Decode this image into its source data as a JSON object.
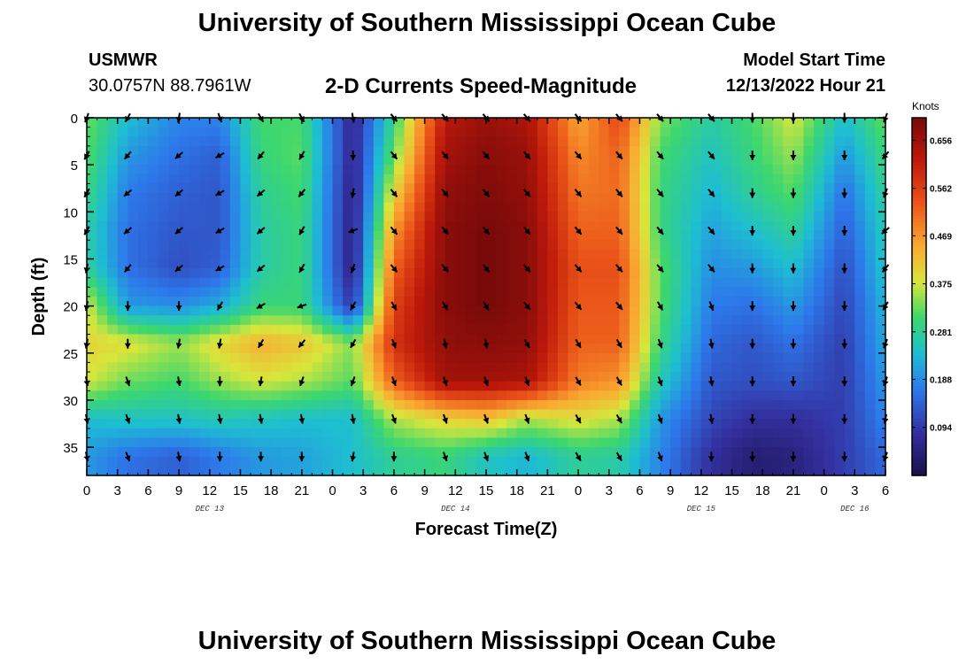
{
  "header": {
    "title": "University of Southern Mississippi Ocean Cube",
    "station_id": "USMWR",
    "coordinates": "30.0757N  88.7961W",
    "chart_title": "2-D Currents Speed-Magnitude",
    "model_start_label": "Model Start Time",
    "model_start_value": "12/13/2022 Hour 21"
  },
  "footer": {
    "title": "University of Southern Mississippi Ocean Cube"
  },
  "chart_data": {
    "type": "heatmap",
    "title": "2-D Currents Speed-Magnitude",
    "xlabel": "Forecast Time(Z)",
    "ylabel": "Depth (ft)",
    "x_range_hours": [
      0,
      78
    ],
    "y_range_ft": [
      0,
      38
    ],
    "x_tick_labels": [
      "0",
      "3",
      "6",
      "9",
      "12",
      "15",
      "18",
      "21",
      "0",
      "3",
      "6",
      "9",
      "12",
      "15",
      "18",
      "21",
      "0",
      "3",
      "6",
      "9",
      "12",
      "15",
      "18",
      "21",
      "0",
      "3",
      "6"
    ],
    "y_ticks": [
      0,
      5,
      10,
      15,
      20,
      25,
      30,
      35
    ],
    "date_labels": [
      {
        "label": "DEC 13",
        "hour": 12
      },
      {
        "label": "DEC 14",
        "hour": 36
      },
      {
        "label": "DEC 15",
        "hour": 60
      },
      {
        "label": "DEC 16",
        "hour": 75
      }
    ],
    "colorbar": {
      "label": "Knots",
      "min": 0.0,
      "max": 0.7,
      "ticks": [
        0.094,
        0.188,
        0.281,
        0.375,
        0.469,
        0.562,
        0.656
      ],
      "tick_labels": [
        "0.094",
        "0.188",
        "0.281",
        "0.375",
        "0.469",
        "0.562",
        "0.656"
      ]
    },
    "time_columns_hours": [
      0,
      4,
      9,
      13,
      17,
      21,
      26,
      30,
      35,
      39,
      43,
      48,
      52,
      56,
      61,
      65,
      69,
      74,
      78
    ],
    "depth_rows_ft": [
      0,
      4,
      8,
      12,
      16,
      20,
      24,
      28,
      32,
      36
    ],
    "speed_grid_knots": [
      [
        0.33,
        0.24,
        0.18,
        0.18,
        0.31,
        0.31,
        0.06,
        0.29,
        0.62,
        0.66,
        0.64,
        0.45,
        0.55,
        0.34,
        0.27,
        0.31,
        0.38,
        0.24,
        0.33
      ],
      [
        0.32,
        0.2,
        0.16,
        0.14,
        0.3,
        0.32,
        0.06,
        0.33,
        0.65,
        0.68,
        0.66,
        0.48,
        0.52,
        0.31,
        0.25,
        0.3,
        0.35,
        0.2,
        0.3
      ],
      [
        0.3,
        0.17,
        0.14,
        0.13,
        0.28,
        0.31,
        0.05,
        0.4,
        0.67,
        0.69,
        0.67,
        0.5,
        0.51,
        0.3,
        0.23,
        0.28,
        0.32,
        0.16,
        0.28
      ],
      [
        0.27,
        0.16,
        0.13,
        0.13,
        0.27,
        0.3,
        0.05,
        0.47,
        0.68,
        0.7,
        0.68,
        0.52,
        0.52,
        0.3,
        0.21,
        0.24,
        0.28,
        0.14,
        0.26
      ],
      [
        0.28,
        0.16,
        0.12,
        0.14,
        0.27,
        0.3,
        0.05,
        0.52,
        0.68,
        0.7,
        0.68,
        0.54,
        0.54,
        0.32,
        0.19,
        0.2,
        0.24,
        0.12,
        0.25
      ],
      [
        0.38,
        0.2,
        0.19,
        0.22,
        0.3,
        0.3,
        0.09,
        0.56,
        0.68,
        0.7,
        0.68,
        0.53,
        0.53,
        0.32,
        0.17,
        0.16,
        0.2,
        0.11,
        0.23
      ],
      [
        0.4,
        0.39,
        0.35,
        0.4,
        0.44,
        0.42,
        0.34,
        0.58,
        0.67,
        0.68,
        0.67,
        0.52,
        0.52,
        0.3,
        0.15,
        0.13,
        0.16,
        0.1,
        0.22
      ],
      [
        0.38,
        0.33,
        0.31,
        0.35,
        0.38,
        0.36,
        0.32,
        0.52,
        0.65,
        0.65,
        0.64,
        0.49,
        0.47,
        0.26,
        0.13,
        0.12,
        0.13,
        0.1,
        0.2
      ],
      [
        0.24,
        0.25,
        0.25,
        0.26,
        0.25,
        0.24,
        0.24,
        0.36,
        0.4,
        0.42,
        0.36,
        0.39,
        0.36,
        0.2,
        0.11,
        0.08,
        0.08,
        0.1,
        0.18
      ],
      [
        0.2,
        0.16,
        0.14,
        0.17,
        0.2,
        0.21,
        0.24,
        0.28,
        0.3,
        0.25,
        0.23,
        0.28,
        0.27,
        0.18,
        0.08,
        0.04,
        0.05,
        0.1,
        0.15
      ]
    ],
    "vector_columns_hours": [
      0,
      4,
      9,
      13,
      17,
      21,
      26,
      30,
      35,
      39,
      43,
      48,
      52,
      56,
      61,
      65,
      69,
      74,
      78
    ],
    "vector_rows_ft": [
      0,
      4,
      8,
      12,
      16,
      20,
      24,
      28,
      32,
      36
    ],
    "vector_direction_deg": [
      [
        200,
        210,
        190,
        160,
        150,
        150,
        170,
        140,
        140,
        140,
        140,
        140,
        140,
        140,
        140,
        180,
        180,
        180,
        200
      ],
      [
        210,
        220,
        230,
        240,
        220,
        210,
        180,
        140,
        140,
        140,
        140,
        140,
        140,
        140,
        140,
        180,
        180,
        180,
        220
      ],
      [
        210,
        230,
        230,
        240,
        230,
        220,
        190,
        140,
        140,
        140,
        140,
        140,
        140,
        140,
        140,
        180,
        180,
        180,
        200
      ],
      [
        210,
        230,
        230,
        240,
        230,
        210,
        250,
        140,
        140,
        140,
        140,
        140,
        140,
        140,
        140,
        180,
        180,
        180,
        230
      ],
      [
        190,
        220,
        230,
        240,
        230,
        210,
        200,
        140,
        140,
        140,
        140,
        140,
        140,
        140,
        140,
        180,
        180,
        180,
        220
      ],
      [
        190,
        180,
        180,
        210,
        240,
        250,
        210,
        150,
        150,
        150,
        140,
        140,
        140,
        150,
        160,
        180,
        180,
        180,
        210
      ],
      [
        190,
        180,
        190,
        190,
        210,
        220,
        210,
        160,
        170,
        170,
        150,
        150,
        150,
        160,
        170,
        180,
        180,
        180,
        200
      ],
      [
        170,
        160,
        170,
        180,
        190,
        200,
        200,
        160,
        160,
        160,
        160,
        150,
        150,
        160,
        170,
        180,
        180,
        180,
        200
      ],
      [
        170,
        160,
        170,
        170,
        170,
        170,
        170,
        160,
        160,
        160,
        160,
        150,
        150,
        160,
        170,
        180,
        180,
        180,
        190
      ],
      [
        170,
        160,
        170,
        180,
        180,
        180,
        190,
        180,
        160,
        160,
        160,
        150,
        150,
        160,
        180,
        180,
        180,
        180,
        200
      ]
    ]
  }
}
